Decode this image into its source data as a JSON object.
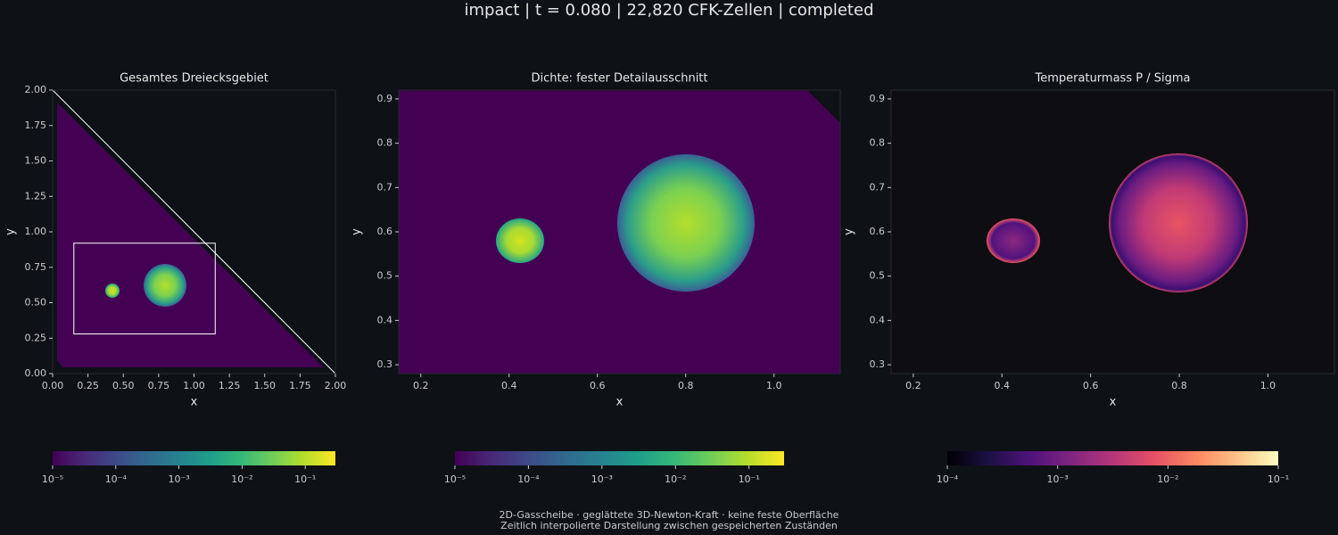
{
  "title": "impact | t = 0.080 | 22,820 CFK-Zellen | completed",
  "chart_data": [
    {
      "type": "heatmap",
      "title": "Gesamtes Dreiecksgebiet",
      "x_label": "x",
      "y_label": "y",
      "xlim": [
        0,
        2
      ],
      "ylim": [
        0,
        2
      ],
      "xticks": [
        {
          "value": 0,
          "label": "0.00"
        },
        {
          "value": 0.25,
          "label": "0.25"
        },
        {
          "value": 0.5,
          "label": "0.50"
        },
        {
          "value": 0.75,
          "label": "0.75"
        },
        {
          "value": 1,
          "label": "1.00"
        },
        {
          "value": 1.25,
          "label": "1.25"
        },
        {
          "value": 1.5,
          "label": "1.50"
        },
        {
          "value": 1.75,
          "label": "1.75"
        },
        {
          "value": 2,
          "label": "2.00"
        }
      ],
      "yticks": [
        {
          "value": 0,
          "label": "0.00"
        },
        {
          "value": 0.25,
          "label": "0.25"
        },
        {
          "value": 0.5,
          "label": "0.50"
        },
        {
          "value": 0.75,
          "label": "0.75"
        },
        {
          "value": 1,
          "label": "1.00"
        },
        {
          "value": 1.25,
          "label": "1.25"
        },
        {
          "value": 1.5,
          "label": "1.50"
        },
        {
          "value": 1.75,
          "label": "1.75"
        },
        {
          "value": 2,
          "label": "2.00"
        }
      ],
      "colorbar": {
        "colormap": "viridis",
        "scale": "log",
        "lim": [
          1e-05,
          0.3
        ],
        "ticks": [
          {
            "value": 1e-05,
            "label": "10⁻⁵"
          },
          {
            "value": 0.0001,
            "label": "10⁻⁴"
          },
          {
            "value": 0.001,
            "label": "10⁻³"
          },
          {
            "value": 0.01,
            "label": "10⁻²"
          },
          {
            "value": 0.1,
            "label": "10⁻¹"
          }
        ]
      }
    },
    {
      "type": "heatmap",
      "title": "Dichte: fester Detailausschnitt",
      "x_label": "x",
      "y_label": "y",
      "xlim": [
        0.15,
        1.15
      ],
      "ylim": [
        0.28,
        0.92
      ],
      "xticks": [
        0.2,
        0.4,
        0.6,
        0.8,
        {
          "value": 1,
          "label": "1.0"
        }
      ],
      "yticks": [
        0.3,
        0.4,
        0.5,
        0.6,
        0.7,
        0.8,
        0.9
      ],
      "colorbar": {
        "colormap": "viridis",
        "scale": "log",
        "lim": [
          1e-05,
          0.3
        ],
        "ticks": [
          {
            "value": 1e-05,
            "label": "10⁻⁵"
          },
          {
            "value": 0.0001,
            "label": "10⁻⁴"
          },
          {
            "value": 0.001,
            "label": "10⁻³"
          },
          {
            "value": 0.01,
            "label": "10⁻²"
          },
          {
            "value": 0.1,
            "label": "10⁻¹"
          }
        ]
      }
    },
    {
      "type": "heatmap",
      "title": "Temperaturmass P / Sigma",
      "x_label": "x",
      "y_label": "y",
      "xlim": [
        0.15,
        1.15
      ],
      "ylim": [
        0.28,
        0.92
      ],
      "xticks": [
        0.2,
        0.4,
        0.6,
        0.8,
        {
          "value": 1,
          "label": "1.0"
        }
      ],
      "yticks": [
        0.3,
        0.4,
        0.5,
        0.6,
        0.7,
        0.8,
        0.9
      ],
      "colorbar": {
        "colormap": "magma",
        "scale": "log",
        "lim": [
          0.0001,
          0.1
        ],
        "ticks": [
          {
            "value": 0.0001,
            "label": "10⁻⁴"
          },
          {
            "value": 0.001,
            "label": "10⁻³"
          },
          {
            "value": 0.01,
            "label": "10⁻²"
          },
          {
            "value": 0.1,
            "label": "10⁻¹"
          }
        ]
      }
    }
  ],
  "footnote": [
    "2D-Gasscheibe · geglättete 3D-Newton-Kraft · keine feste Oberfläche",
    "Zeitlich interpolierte Darstellung zwischen gespeicherten Zuständen"
  ]
}
